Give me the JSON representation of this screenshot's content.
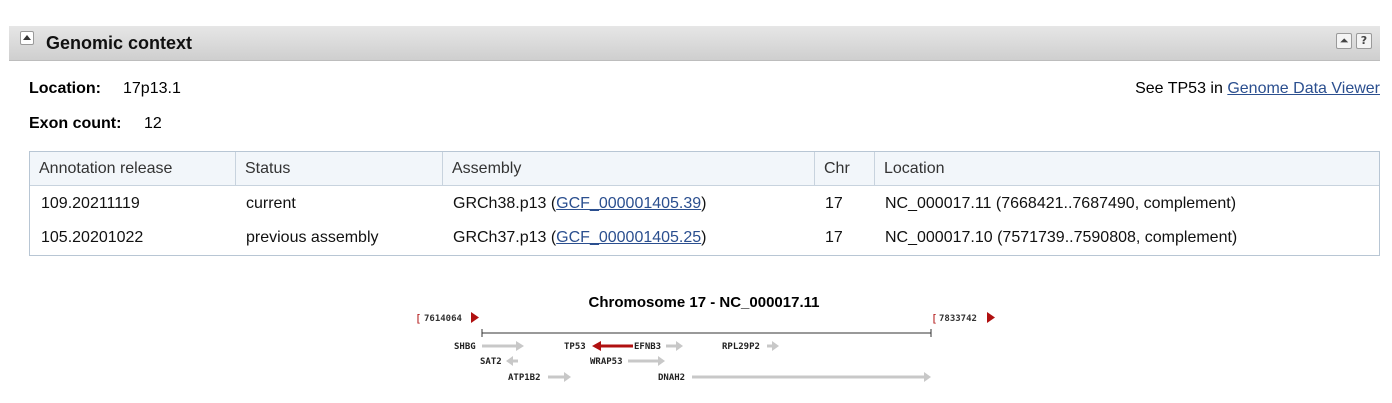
{
  "section": {
    "title": "Genomic context"
  },
  "icons": {
    "collapse": "collapse-up-icon",
    "top": "double-chevron-up-icon",
    "help": "help-icon"
  },
  "location": {
    "label": "Location:",
    "value": "17p13.1"
  },
  "exon_count": {
    "label": "Exon count:",
    "value": "12"
  },
  "see_link": {
    "prefix": "See TP53 in ",
    "link": "Genome Data Viewer"
  },
  "table": {
    "headers": [
      "Annotation release",
      "Status",
      "Assembly",
      "Chr",
      "Location"
    ],
    "rows": [
      {
        "release": "109.20211119",
        "status": "current",
        "assembly": "GRCh38.p13 (",
        "assembly_link": "GCF_000001405.39",
        "assembly_close": ")",
        "chr": "17",
        "location": "NC_000017.11 (7668421..7687490, complement)"
      },
      {
        "release": "105.20201022",
        "status": "previous assembly",
        "assembly": "GRCh37.p13 (",
        "assembly_link": "GCF_000001405.25",
        "assembly_close": ")",
        "chr": "17",
        "location": "NC_000017.10 (7571739..7590808, complement)"
      }
    ]
  },
  "map": {
    "title": "Chromosome 17 - NC_000017.11",
    "start": "7614064",
    "end": "7833742",
    "genes": [
      "SHBG",
      "SAT2",
      "ATP1B2",
      "TP53",
      "EFNB3",
      "WRAP53",
      "DNAH2",
      "RPL29P2"
    ],
    "colors": {
      "highlight": "#b01010",
      "gene": "#c8c8c8",
      "marker": "#b01010"
    }
  }
}
